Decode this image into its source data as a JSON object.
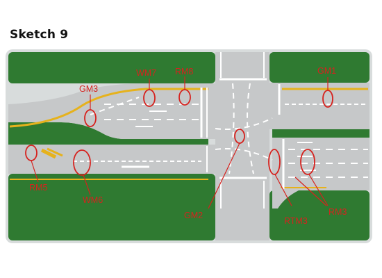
{
  "title": "Sketch 9",
  "colors": {
    "grass": "#2f7a31",
    "frame": "#d8dcdc",
    "road": "#c6c8c9",
    "white_marking": "#ffffff",
    "yellow_marking": "#e6b21c",
    "callout": "#d6221e"
  },
  "labels": {
    "gm1": "GM1",
    "gm2": "GM2",
    "gm3": "GM3",
    "wm6": "WM6",
    "wm7": "WM7",
    "rm3": "RM3",
    "rm5": "RM5",
    "rm8": "RM8",
    "rtm3": "RTM3"
  }
}
